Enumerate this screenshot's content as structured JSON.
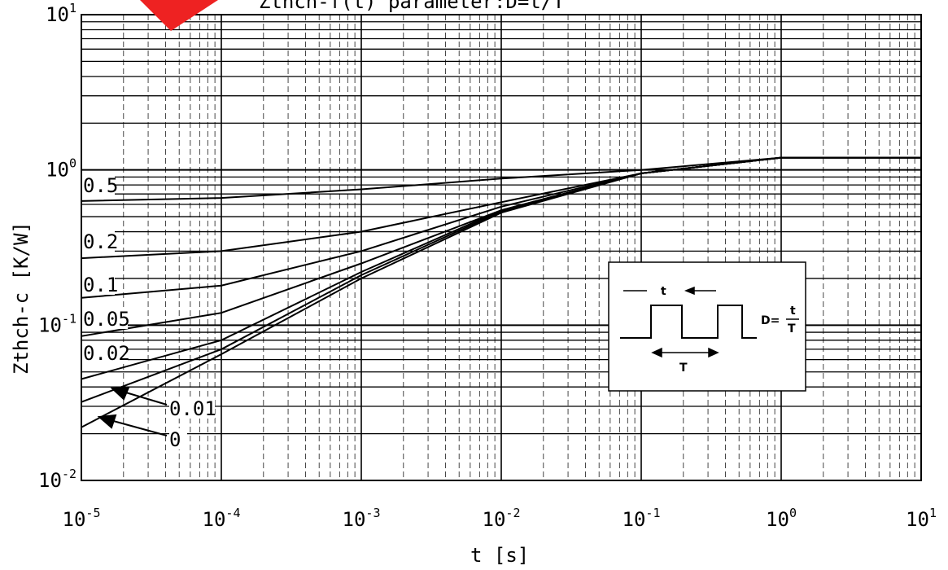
{
  "chart_data": {
    "type": "line",
    "title": "Zthch-f(t) parameter:D=t/T",
    "xlabel": "t [s]",
    "ylabel": "Zthch-c [K/W]",
    "xscale": "log",
    "yscale": "log",
    "xlim": [
      1e-05,
      10
    ],
    "ylim": [
      0.01,
      10
    ],
    "grid": true,
    "x_ticks": [
      {
        "base": "10",
        "exp": "-5"
      },
      {
        "base": "10",
        "exp": "-4"
      },
      {
        "base": "10",
        "exp": "-3"
      },
      {
        "base": "10",
        "exp": "-2"
      },
      {
        "base": "10",
        "exp": "-1"
      },
      {
        "base": "10",
        "exp": "0"
      },
      {
        "base": "10",
        "exp": "1"
      }
    ],
    "y_ticks": [
      {
        "base": "10",
        "exp": "-2"
      },
      {
        "base": "10",
        "exp": "-1"
      },
      {
        "base": "10",
        "exp": "0"
      },
      {
        "base": "10",
        "exp": "1"
      }
    ],
    "series": [
      {
        "name": "0.5",
        "x": [
          1e-05,
          0.0001,
          0.001,
          0.01,
          0.1,
          1,
          10
        ],
        "y": [
          0.63,
          0.66,
          0.75,
          0.88,
          1.0,
          1.2,
          1.2
        ]
      },
      {
        "name": "0.2",
        "x": [
          1e-05,
          0.0001,
          0.001,
          0.01,
          0.1,
          1,
          10
        ],
        "y": [
          0.27,
          0.3,
          0.4,
          0.62,
          0.95,
          1.2,
          1.2
        ]
      },
      {
        "name": "0.1",
        "x": [
          1e-05,
          0.0001,
          0.001,
          0.01,
          0.1,
          1,
          10
        ],
        "y": [
          0.15,
          0.18,
          0.3,
          0.58,
          0.95,
          1.2,
          1.2
        ]
      },
      {
        "name": "0.05",
        "x": [
          1e-05,
          0.0001,
          0.001,
          0.01,
          0.1,
          1,
          10
        ],
        "y": [
          0.085,
          0.12,
          0.25,
          0.55,
          0.95,
          1.2,
          1.2
        ]
      },
      {
        "name": "0.02",
        "x": [
          1e-05,
          0.0001,
          0.001,
          0.01,
          0.1,
          1,
          10
        ],
        "y": [
          0.045,
          0.08,
          0.22,
          0.55,
          0.95,
          1.2,
          1.2
        ]
      },
      {
        "name": "0.01",
        "x": [
          1e-05,
          0.0001,
          0.001,
          0.01,
          0.1,
          1,
          10
        ],
        "y": [
          0.032,
          0.07,
          0.21,
          0.54,
          0.95,
          1.2,
          1.2
        ]
      },
      {
        "name": "0",
        "x": [
          1e-05,
          0.0001,
          0.001,
          0.01,
          0.1,
          1,
          10
        ],
        "y": [
          0.022,
          0.065,
          0.2,
          0.53,
          0.95,
          1.2,
          1.2
        ]
      }
    ],
    "series_labels": [
      "0.5",
      "0.2",
      "0.1",
      "0.05",
      "0.02",
      "0.01",
      "0"
    ],
    "inset": {
      "t_label": "t",
      "T_label": "T",
      "formula_lhs": "D=",
      "formula_num": "t",
      "formula_den": "T"
    }
  }
}
